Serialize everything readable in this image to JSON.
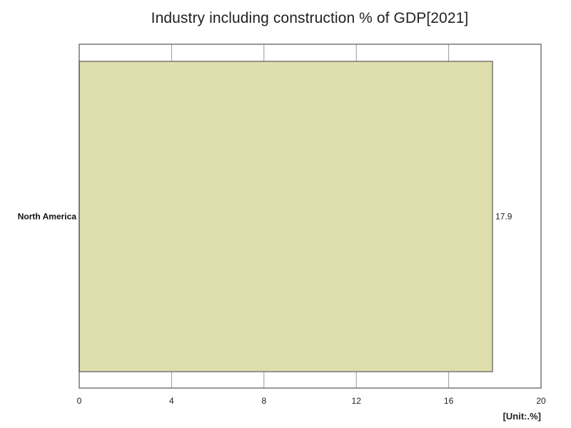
{
  "chart_data": {
    "type": "bar",
    "orientation": "horizontal",
    "title": "Industry including construction % of GDP[2021]",
    "unit": "[Unit:.%]",
    "categories": [
      "North America"
    ],
    "values": [
      17.9
    ],
    "data_labels": [
      "17.9"
    ],
    "xlim": [
      0,
      20
    ],
    "x_ticks": [
      0,
      4,
      8,
      12,
      16,
      20
    ],
    "grid": true,
    "bar_color": "#dedead",
    "bar_edge_color": "#777777"
  }
}
